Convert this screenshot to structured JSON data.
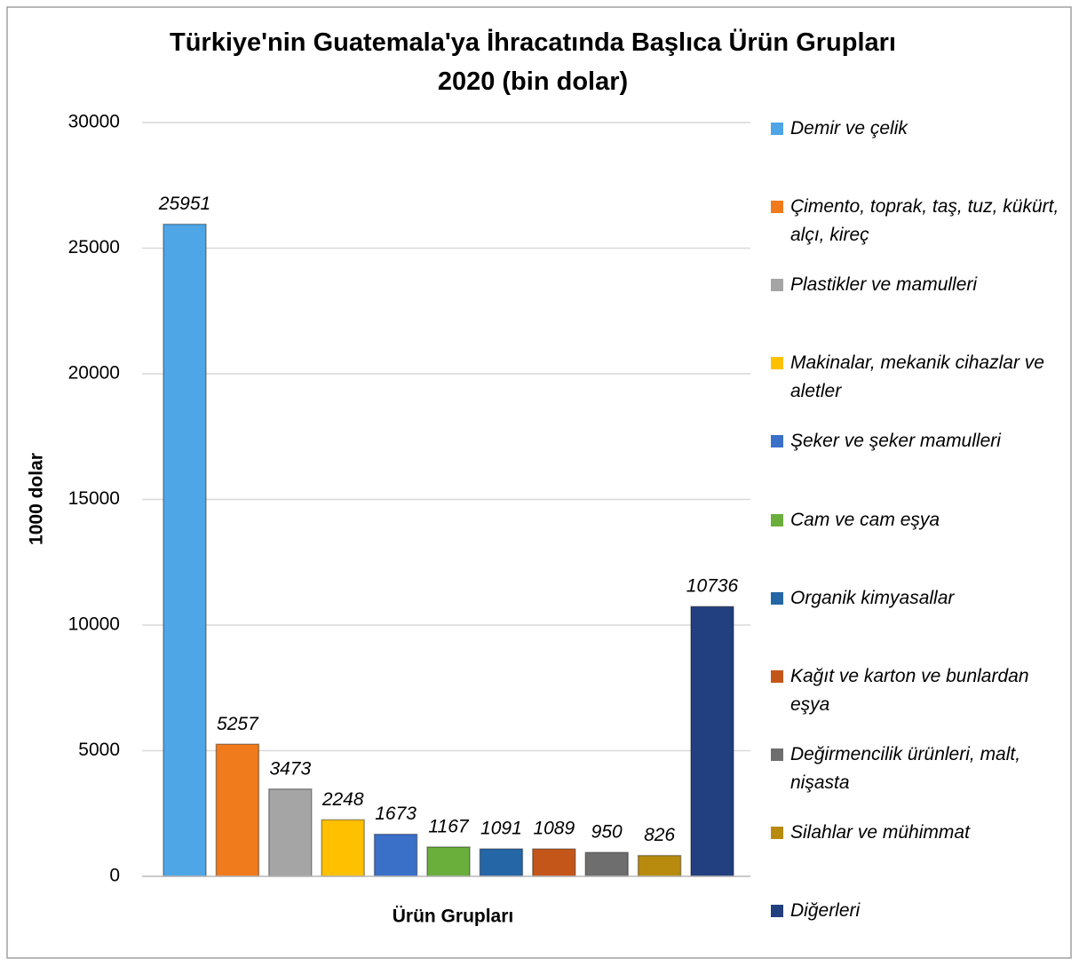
{
  "chart_data": {
    "type": "bar",
    "title": "Türkiye'nin Guatemala'ya İhracatında Başlıca Ürün Grupları\n2020 (bin dolar)",
    "x_label": "Ürün Grupları",
    "y_label": "1000 dolar",
    "categories": [
      "Demir ve çelik",
      "Çimento, toprak, taş, tuz, kükürt, alçı, kireç",
      "Plastikler ve mamulleri",
      "Makinalar, mekanik cihazlar ve aletler",
      "Şeker ve şeker mamulleri",
      "Cam ve cam eşya",
      "Organik kimyasallar",
      "Kağıt ve karton ve bunlardan eşya",
      "Değirmencilik ürünleri, malt, nişasta",
      "Silahlar ve mühimmat",
      "Diğerleri"
    ],
    "values": [
      25951,
      5257,
      3473,
      2248,
      1673,
      1167,
      1091,
      1089,
      950,
      826,
      10736
    ],
    "colors": [
      "#4ea6e6",
      "#f07b1c",
      "#a5a5a5",
      "#ffc000",
      "#3a70c8",
      "#6aaf3c",
      "#2566a6",
      "#c5561a",
      "#6e6e6e",
      "#b88b0e",
      "#223f80"
    ],
    "ylim": [
      0,
      30000
    ],
    "yticks": [
      0,
      5000,
      10000,
      15000,
      20000,
      25000,
      30000
    ],
    "grid": true,
    "legend": "right"
  }
}
